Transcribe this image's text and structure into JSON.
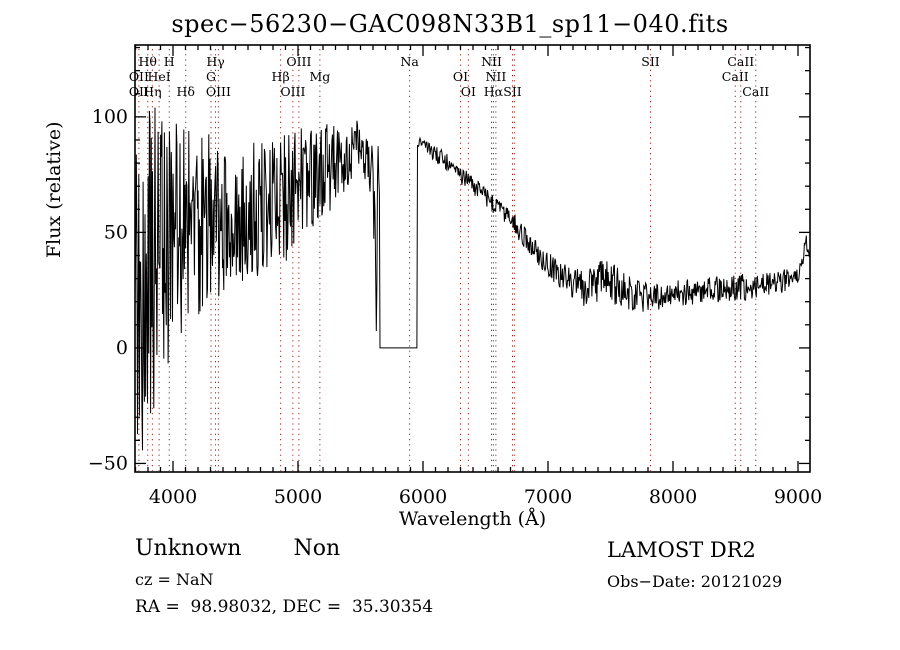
{
  "title": "spec−56230−GAC098N33B1_sp11−040.fits",
  "footer": {
    "class_label": "Unknown",
    "subclass_label": "Non",
    "cz_line": "cz = NaN",
    "radec_line": "RA =  98.98032, DEC =  35.30354",
    "survey_line": "LAMOST DR2",
    "obsdate_line": "Obs−Date: 20121029"
  },
  "colors": {
    "spectrum": "#000000",
    "axis": "#000000",
    "line_marker": "#99221c",
    "background": "#ffffff"
  },
  "chart_data": {
    "type": "line",
    "title": "spec−56230−GAC098N33B1_sp11−040.fits",
    "xlabel": "Wavelength (Å)",
    "ylabel": "Flux (relative)",
    "xlim": [
      3696,
      9096
    ],
    "ylim": [
      -53.7,
      131.1
    ],
    "grid": false,
    "xticks": [
      {
        "v": 4000,
        "label": "4000"
      },
      {
        "v": 5000,
        "label": "5000"
      },
      {
        "v": 6000,
        "label": "6000"
      },
      {
        "v": 7000,
        "label": "7000"
      },
      {
        "v": 8000,
        "label": "8000"
      },
      {
        "v": 9000,
        "label": "9000"
      }
    ],
    "xminor_step": 100,
    "yticks": [
      {
        "v": -50,
        "label": "−50"
      },
      {
        "v": 0,
        "label": "0"
      },
      {
        "v": 50,
        "label": "50"
      },
      {
        "v": 100,
        "label": "100"
      }
    ],
    "yminor_step": 10,
    "masked_region": {
      "from": 5656,
      "to": 5952,
      "flux": 0
    },
    "series": [
      {
        "name": "flux",
        "sample_step": 5,
        "envelope_nodes": [
          [
            3696,
            15,
            70
          ],
          [
            3710,
            25,
            75
          ],
          [
            3740,
            25,
            78
          ],
          [
            3780,
            32,
            74
          ],
          [
            3820,
            36,
            70
          ],
          [
            3860,
            42,
            66
          ],
          [
            3900,
            45,
            64
          ],
          [
            3950,
            48,
            58
          ],
          [
            4000,
            50,
            52
          ],
          [
            4060,
            52,
            47
          ],
          [
            4120,
            53,
            44
          ],
          [
            4200,
            55,
            42
          ],
          [
            4280,
            57,
            39
          ],
          [
            4360,
            58,
            36
          ],
          [
            4440,
            59,
            34
          ],
          [
            4520,
            60,
            33
          ],
          [
            4600,
            61,
            32
          ],
          [
            4680,
            62,
            31
          ],
          [
            4760,
            63,
            30
          ],
          [
            4840,
            64,
            29
          ],
          [
            4920,
            66,
            28
          ],
          [
            5000,
            70,
            26
          ],
          [
            5080,
            72,
            25
          ],
          [
            5160,
            75,
            23
          ],
          [
            5240,
            78,
            20
          ],
          [
            5320,
            81,
            17
          ],
          [
            5400,
            84,
            14
          ],
          [
            5480,
            87,
            12
          ],
          [
            5560,
            85,
            13
          ],
          [
            5600,
            72,
            25
          ],
          [
            5615,
            65,
            22
          ],
          [
            5625,
            -15,
            25
          ],
          [
            5635,
            68,
            20
          ],
          [
            5650,
            75,
            18
          ],
          [
            5955,
            90,
            3
          ],
          [
            6000,
            88,
            3
          ],
          [
            6080,
            85,
            4
          ],
          [
            6160,
            82,
            4
          ],
          [
            6240,
            78,
            4
          ],
          [
            6320,
            74,
            4
          ],
          [
            6400,
            70,
            4
          ],
          [
            6480,
            67,
            4
          ],
          [
            6560,
            62,
            4
          ],
          [
            6640,
            58,
            4
          ],
          [
            6720,
            54,
            5
          ],
          [
            6800,
            49,
            5
          ],
          [
            6880,
            43,
            5
          ],
          [
            6960,
            38,
            5
          ],
          [
            7040,
            34,
            6
          ],
          [
            7120,
            31,
            6
          ],
          [
            7200,
            28,
            7
          ],
          [
            7280,
            26,
            8
          ],
          [
            7360,
            28,
            9
          ],
          [
            7440,
            30,
            9
          ],
          [
            7520,
            28,
            9
          ],
          [
            7600,
            25,
            8
          ],
          [
            7680,
            23,
            7
          ],
          [
            7760,
            22,
            7
          ],
          [
            7840,
            22,
            6
          ],
          [
            7920,
            22,
            6
          ],
          [
            8000,
            23,
            6
          ],
          [
            8080,
            24,
            6
          ],
          [
            8160,
            24,
            6
          ],
          [
            8240,
            25,
            6
          ],
          [
            8320,
            25,
            6
          ],
          [
            8400,
            25,
            6
          ],
          [
            8480,
            26,
            6
          ],
          [
            8560,
            26,
            6
          ],
          [
            8640,
            26,
            5
          ],
          [
            8720,
            27,
            5
          ],
          [
            8800,
            28,
            5
          ],
          [
            8880,
            29,
            5
          ],
          [
            8940,
            30,
            4
          ],
          [
            9000,
            32,
            4
          ],
          [
            9040,
            38,
            3
          ],
          [
            9060,
            48,
            2
          ],
          [
            9075,
            44,
            3
          ],
          [
            9096,
            40,
            3
          ]
        ]
      }
    ],
    "spectral_lines": [
      {
        "label": "Hθ",
        "row": 1,
        "wavelength": 3798
      },
      {
        "label": "H",
        "row": 1,
        "wavelength": 3970
      },
      {
        "label": "Hγ",
        "row": 1,
        "wavelength": 4340
      },
      {
        "label": "OIII",
        "row": 1,
        "wavelength": 5007
      },
      {
        "label": "Na",
        "row": 1,
        "wavelength": 5893
      },
      {
        "label": "NII",
        "row": 1,
        "wavelength": 6548
      },
      {
        "label": "SII",
        "row": 1,
        "wavelength": 7820
      },
      {
        "label": "CaII",
        "row": 1,
        "wavelength": 8542
      },
      {
        "label": "OII",
        "row": 2,
        "wavelength": 3727
      },
      {
        "label": "HeI",
        "row": 2,
        "wavelength": 3889
      },
      {
        "label": "G",
        "row": 2,
        "wavelength": 4304
      },
      {
        "label": "Hβ",
        "row": 2,
        "wavelength": 4861
      },
      {
        "label": "Mg",
        "row": 2,
        "wavelength": 5175
      },
      {
        "label": "OI",
        "row": 2,
        "wavelength": 6300
      },
      {
        "label": "NII",
        "row": 2,
        "wavelength": 6583
      },
      {
        "label": "CaII",
        "row": 2,
        "wavelength": 8498
      },
      {
        "label": "OII",
        "row": 3,
        "wavelength": 3727
      },
      {
        "label": "Hη",
        "row": 3,
        "wavelength": 3835
      },
      {
        "label": "Hδ",
        "row": 3,
        "wavelength": 4102
      },
      {
        "label": "OIII",
        "row": 3,
        "wavelength": 4363
      },
      {
        "label": "OIII",
        "row": 3,
        "wavelength": 4959
      },
      {
        "label": "OI",
        "row": 3,
        "wavelength": 6363
      },
      {
        "label": "Hα",
        "row": 3,
        "wavelength": 6563
      },
      {
        "label": "SII",
        "row": 3,
        "wavelength": 6716
      },
      {
        "label": "CaII",
        "row": 3,
        "wavelength": 8662
      }
    ],
    "extra_marker_wavelengths": [
      6731
    ]
  }
}
